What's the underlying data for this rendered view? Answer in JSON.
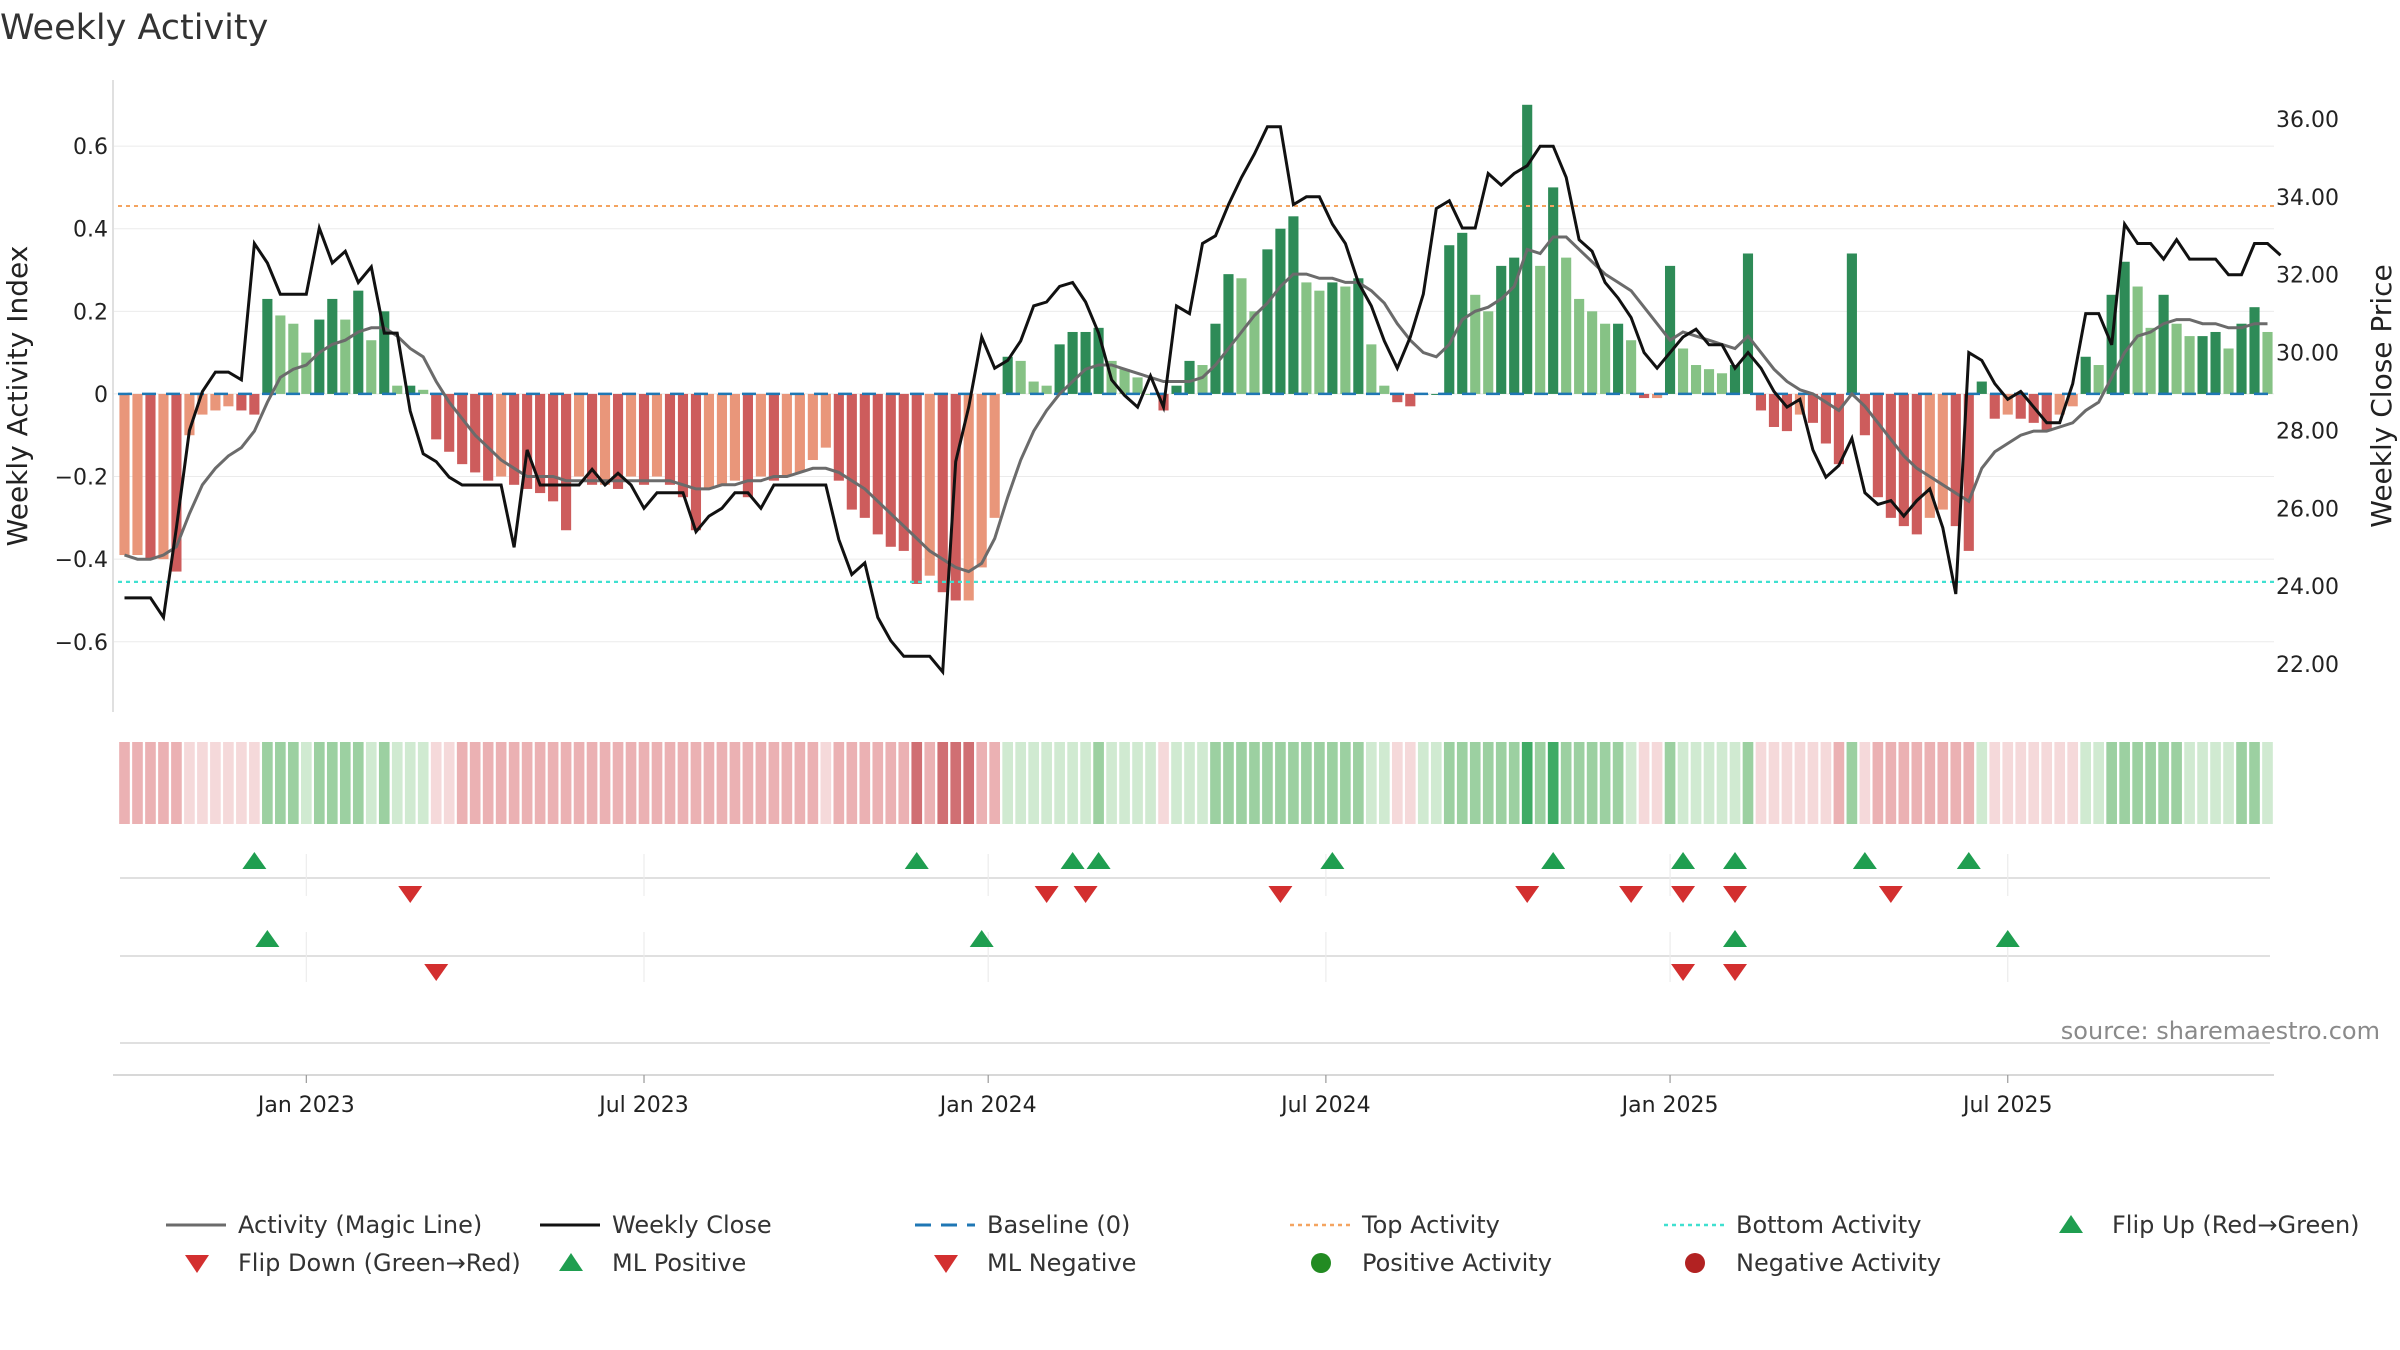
{
  "chart_data": {
    "type": "bar",
    "title": "Weekly Activity",
    "ylabel_left": "Weekly Activity Index",
    "ylabel_right": "Weekly Close Price",
    "source": "source: sharemaestro.com",
    "ylim_left": [
      -0.77,
      0.76
    ],
    "ylim_right": [
      20.77,
      37.0
    ],
    "yticks_left": [
      {
        "value": 0.6,
        "label": "0.6"
      },
      {
        "value": 0.4,
        "label": "0.4"
      },
      {
        "value": 0.2,
        "label": "0.2"
      },
      {
        "value": 0,
        "label": "0"
      },
      {
        "value": -0.2,
        "label": "−0.2"
      },
      {
        "value": -0.4,
        "label": "−0.4"
      },
      {
        "value": -0.6,
        "label": "−0.6"
      }
    ],
    "yticks_right": [
      {
        "value": 36,
        "label": "36.00"
      },
      {
        "value": 34,
        "label": "34.00"
      },
      {
        "value": 32,
        "label": "32.00"
      },
      {
        "value": 30,
        "label": "30.00"
      },
      {
        "value": 28,
        "label": "28.00"
      },
      {
        "value": 26,
        "label": "26.00"
      },
      {
        "value": 24,
        "label": "24.00"
      },
      {
        "value": 22,
        "label": "22.00"
      }
    ],
    "x_ticks": [
      {
        "label": "Jan 2023",
        "week": 14.5
      },
      {
        "label": "Jul 2023",
        "week": 40.5
      },
      {
        "label": "Jan 2024",
        "week": 67
      },
      {
        "label": "Jul 2024",
        "week": 93
      },
      {
        "label": "Jan 2025",
        "week": 119.5
      },
      {
        "label": "Jul 2025",
        "week": 145.5
      }
    ],
    "top_activity": 0.455,
    "bottom_activity": -0.455,
    "baseline": 0,
    "activity": [
      -0.39,
      -0.39,
      -0.4,
      -0.4,
      -0.43,
      -0.1,
      -0.05,
      -0.04,
      -0.03,
      -0.04,
      -0.05,
      0.23,
      0.19,
      0.17,
      0.1,
      0.18,
      0.23,
      0.18,
      0.25,
      0.13,
      0.2,
      0.02,
      0.02,
      0.01,
      -0.11,
      -0.14,
      -0.17,
      -0.19,
      -0.21,
      -0.2,
      -0.22,
      -0.23,
      -0.24,
      -0.26,
      -0.33,
      -0.2,
      -0.22,
      -0.22,
      -0.23,
      -0.2,
      -0.22,
      -0.2,
      -0.22,
      -0.25,
      -0.33,
      -0.23,
      -0.22,
      -0.21,
      -0.25,
      -0.2,
      -0.21,
      -0.2,
      -0.19,
      -0.16,
      -0.13,
      -0.21,
      -0.28,
      -0.3,
      -0.34,
      -0.37,
      -0.38,
      -0.46,
      -0.44,
      -0.48,
      -0.5,
      -0.5,
      -0.42,
      -0.3,
      0.09,
      0.08,
      0.03,
      0.02,
      0.12,
      0.15,
      0.15,
      0.16,
      0.08,
      0.06,
      0.04,
      0,
      -0.04,
      0.02,
      0.08,
      0.07,
      0.17,
      0.29,
      0.28,
      0.2,
      0.35,
      0.4,
      0.43,
      0.27,
      0.25,
      0.27,
      0.26,
      0.28,
      0.12,
      0.02,
      -0.02,
      -0.03,
      0,
      0,
      0.36,
      0.39,
      0.24,
      0.2,
      0.31,
      0.33,
      0.7,
      0.31,
      0.5,
      0.33,
      0.23,
      0.2,
      0.17,
      0.17,
      0.13,
      -0.01,
      -0.01,
      0.31,
      0.11,
      0.07,
      0.06,
      0.05,
      0.07,
      0.34,
      -0.04,
      -0.08,
      -0.09,
      -0.05,
      -0.07,
      -0.12,
      -0.17,
      0.34,
      -0.1,
      -0.25,
      -0.3,
      -0.32,
      -0.34,
      -0.3,
      -0.28,
      -0.32,
      -0.38,
      0.03,
      -0.06,
      -0.05,
      -0.06,
      -0.07,
      -0.09,
      -0.05,
      -0.03,
      0.09,
      0.07,
      0.24,
      0.32,
      0.26,
      0.16,
      0.24,
      0.17,
      0.14,
      0.14,
      0.15,
      0.11,
      0.17,
      0.21,
      0.15
    ],
    "magic_line": [
      -0.39,
      -0.4,
      -0.4,
      -0.39,
      -0.37,
      -0.29,
      -0.22,
      -0.18,
      -0.15,
      -0.13,
      -0.09,
      -0.02,
      0.04,
      0.06,
      0.07,
      0.1,
      0.12,
      0.13,
      0.15,
      0.16,
      0.16,
      0.14,
      0.11,
      0.09,
      0.03,
      -0.02,
      -0.06,
      -0.1,
      -0.13,
      -0.16,
      -0.18,
      -0.2,
      -0.2,
      -0.2,
      -0.21,
      -0.21,
      -0.21,
      -0.21,
      -0.21,
      -0.21,
      -0.21,
      -0.21,
      -0.21,
      -0.22,
      -0.23,
      -0.23,
      -0.22,
      -0.22,
      -0.21,
      -0.21,
      -0.2,
      -0.2,
      -0.19,
      -0.18,
      -0.18,
      -0.19,
      -0.21,
      -0.23,
      -0.26,
      -0.29,
      -0.32,
      -0.35,
      -0.38,
      -0.4,
      -0.42,
      -0.43,
      -0.41,
      -0.35,
      -0.25,
      -0.16,
      -0.09,
      -0.04,
      0,
      0.03,
      0.06,
      0.07,
      0.07,
      0.06,
      0.05,
      0.04,
      0.03,
      0.03,
      0.03,
      0.04,
      0.07,
      0.11,
      0.15,
      0.19,
      0.22,
      0.26,
      0.29,
      0.29,
      0.28,
      0.28,
      0.27,
      0.27,
      0.25,
      0.22,
      0.17,
      0.13,
      0.1,
      0.09,
      0.12,
      0.18,
      0.2,
      0.21,
      0.23,
      0.26,
      0.35,
      0.34,
      0.38,
      0.38,
      0.35,
      0.32,
      0.29,
      0.27,
      0.25,
      0.21,
      0.17,
      0.13,
      0.15,
      0.14,
      0.13,
      0.12,
      0.11,
      0.14,
      0.1,
      0.06,
      0.03,
      0.01,
      0,
      -0.02,
      -0.04,
      0,
      -0.03,
      -0.07,
      -0.11,
      -0.15,
      -0.18,
      -0.2,
      -0.22,
      -0.24,
      -0.26,
      -0.18,
      -0.14,
      -0.12,
      -0.1,
      -0.09,
      -0.09,
      -0.08,
      -0.07,
      -0.04,
      -0.02,
      0.04,
      0.1,
      0.14,
      0.15,
      0.17,
      0.18,
      0.18,
      0.17,
      0.17,
      0.16,
      0.16,
      0.17,
      0.17
    ],
    "weekly_close": [
      23.7,
      23.7,
      23.7,
      23.2,
      25.5,
      28,
      29,
      29.5,
      29.5,
      29.3,
      32.8,
      32.3,
      31.5,
      31.5,
      31.5,
      33.2,
      32.3,
      32.6,
      31.8,
      32.2,
      30.5,
      30.5,
      28.5,
      27.4,
      27.2,
      26.8,
      26.6,
      26.6,
      26.6,
      26.6,
      25,
      27.5,
      26.6,
      26.6,
      26.6,
      26.6,
      27,
      26.6,
      26.9,
      26.6,
      26,
      26.4,
      26.4,
      26.4,
      25.4,
      25.8,
      26,
      26.4,
      26.4,
      26,
      26.6,
      26.6,
      26.6,
      26.6,
      26.6,
      25.2,
      24.3,
      24.6,
      23.2,
      22.6,
      22.2,
      22.2,
      22.2,
      21.8,
      27.2,
      28.6,
      30.4,
      29.6,
      29.8,
      30.3,
      31.2,
      31.3,
      31.7,
      31.8,
      31.3,
      30.5,
      29.3,
      28.9,
      28.6,
      29.4,
      28.6,
      31.2,
      31,
      32.8,
      33,
      33.8,
      34.5,
      35.1,
      35.8,
      35.8,
      33.8,
      34,
      34,
      33.3,
      32.8,
      31.8,
      31.2,
      30.3,
      29.6,
      30.4,
      31.5,
      33.7,
      33.9,
      33.2,
      33.2,
      34.6,
      34.3,
      34.6,
      34.8,
      35.3,
      35.3,
      34.5,
      32.9,
      32.6,
      31.8,
      31.4,
      30.9,
      30,
      29.6,
      30,
      30.4,
      30.6,
      30.2,
      30.2,
      29.6,
      30,
      29.6,
      29,
      28.6,
      28.8,
      27.5,
      26.8,
      27.1,
      27.8,
      26.4,
      26.1,
      26.2,
      25.8,
      26.2,
      26.5,
      25.5,
      23.8,
      30,
      29.8,
      29.2,
      28.8,
      29,
      28.6,
      28.2,
      28.2,
      29.2,
      31,
      31,
      30.2,
      33.3,
      32.8,
      32.8,
      32.4,
      32.9,
      32.4,
      32.4,
      32.4,
      32,
      32,
      32.8,
      32.8,
      32.5
    ]
  },
  "strip": {
    "up": [
      "#1d9c4a",
      "#8bc891",
      "#c8e6c9"
    ],
    "down": [
      "#c8565b",
      "#e8a3a6",
      "#f3d2d3"
    ]
  },
  "signals": {
    "flip_up_weeks": [
      10,
      61,
      73,
      75,
      93,
      110,
      120,
      124,
      134,
      142
    ],
    "flip_down_weeks": [
      22,
      71,
      74,
      89,
      108,
      116,
      120,
      124,
      136
    ],
    "ml_positive_weeks": [
      11,
      66,
      124,
      145
    ],
    "ml_negative_weeks": [
      24,
      120,
      124
    ]
  },
  "legend": [
    {
      "key": "magic",
      "label": "Activity (Magic Line)"
    },
    {
      "key": "close",
      "label": "Weekly Close"
    },
    {
      "key": "baseline",
      "label": "Baseline (0)"
    },
    {
      "key": "top",
      "label": "Top Activity"
    },
    {
      "key": "bottom",
      "label": "Bottom Activity"
    },
    {
      "key": "flipup",
      "label": "Flip Up (Red→Green)"
    },
    {
      "key": "flipdown",
      "label": "Flip Down (Green→Red)"
    },
    {
      "key": "mlpos",
      "label": "ML Positive"
    },
    {
      "key": "mlneg",
      "label": "ML Negative"
    },
    {
      "key": "posact",
      "label": "Positive Activity"
    },
    {
      "key": "negact",
      "label": "Negative Activity"
    }
  ],
  "colors": {
    "strong_green": "#2e8b57",
    "light_green": "#86c285",
    "strong_red": "#cd5c5c",
    "light_red": "#e9967a",
    "magic_line": "#6b6b6b",
    "close_line": "#111111",
    "baseline": "#1f77b4",
    "top_line": "#f4a460",
    "bottom_line": "#40e0d0",
    "marker_green": "#1f9e50",
    "marker_red": "#d32f2f",
    "pos_dot": "#228b22",
    "neg_dot": "#b22222"
  }
}
